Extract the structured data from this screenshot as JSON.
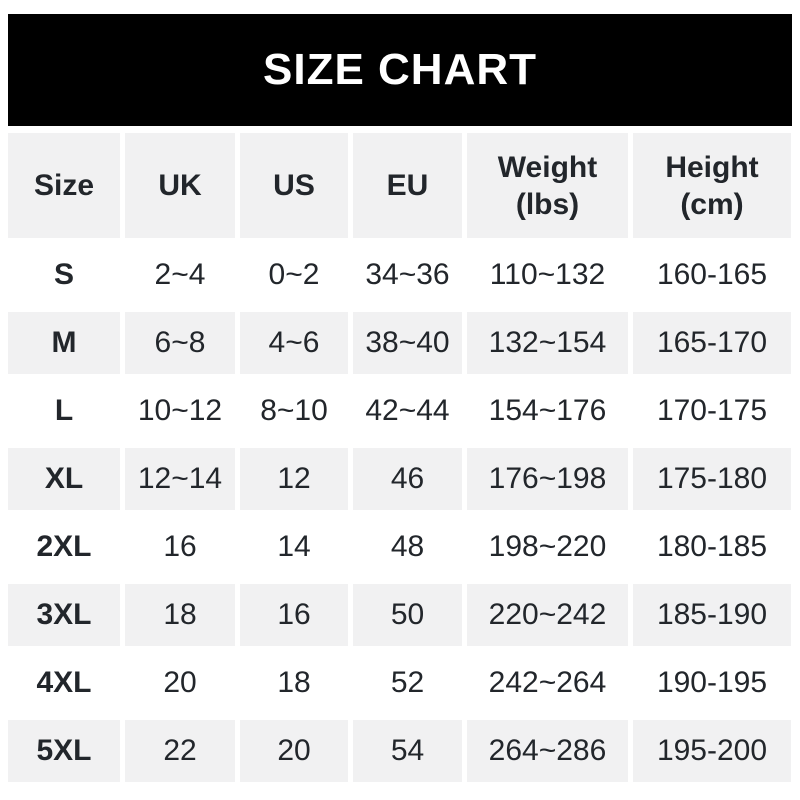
{
  "title": "SIZE CHART",
  "colors": {
    "banner_bg": "#000000",
    "banner_text": "#ffffff",
    "row_shade": "#f1f1f2",
    "text": "#22262b"
  },
  "table": {
    "headers": [
      "Size",
      "UK",
      "US",
      "EU",
      "Weight\n(lbs)",
      "Height\n(cm)"
    ],
    "rows": [
      {
        "size": "S",
        "uk": "2~4",
        "us": "0~2",
        "eu": "34~36",
        "weight_lbs": "110~132",
        "height_cm": "160-165"
      },
      {
        "size": "M",
        "uk": "6~8",
        "us": "4~6",
        "eu": "38~40",
        "weight_lbs": "132~154",
        "height_cm": "165-170"
      },
      {
        "size": "L",
        "uk": "10~12",
        "us": "8~10",
        "eu": "42~44",
        "weight_lbs": "154~176",
        "height_cm": "170-175"
      },
      {
        "size": "XL",
        "uk": "12~14",
        "us": "12",
        "eu": "46",
        "weight_lbs": "176~198",
        "height_cm": "175-180"
      },
      {
        "size": "2XL",
        "uk": "16",
        "us": "14",
        "eu": "48",
        "weight_lbs": "198~220",
        "height_cm": "180-185"
      },
      {
        "size": "3XL",
        "uk": "18",
        "us": "16",
        "eu": "50",
        "weight_lbs": "220~242",
        "height_cm": "185-190"
      },
      {
        "size": "4XL",
        "uk": "20",
        "us": "18",
        "eu": "52",
        "weight_lbs": "242~264",
        "height_cm": "190-195"
      },
      {
        "size": "5XL",
        "uk": "22",
        "us": "20",
        "eu": "54",
        "weight_lbs": "264~286",
        "height_cm": "195-200"
      }
    ]
  }
}
